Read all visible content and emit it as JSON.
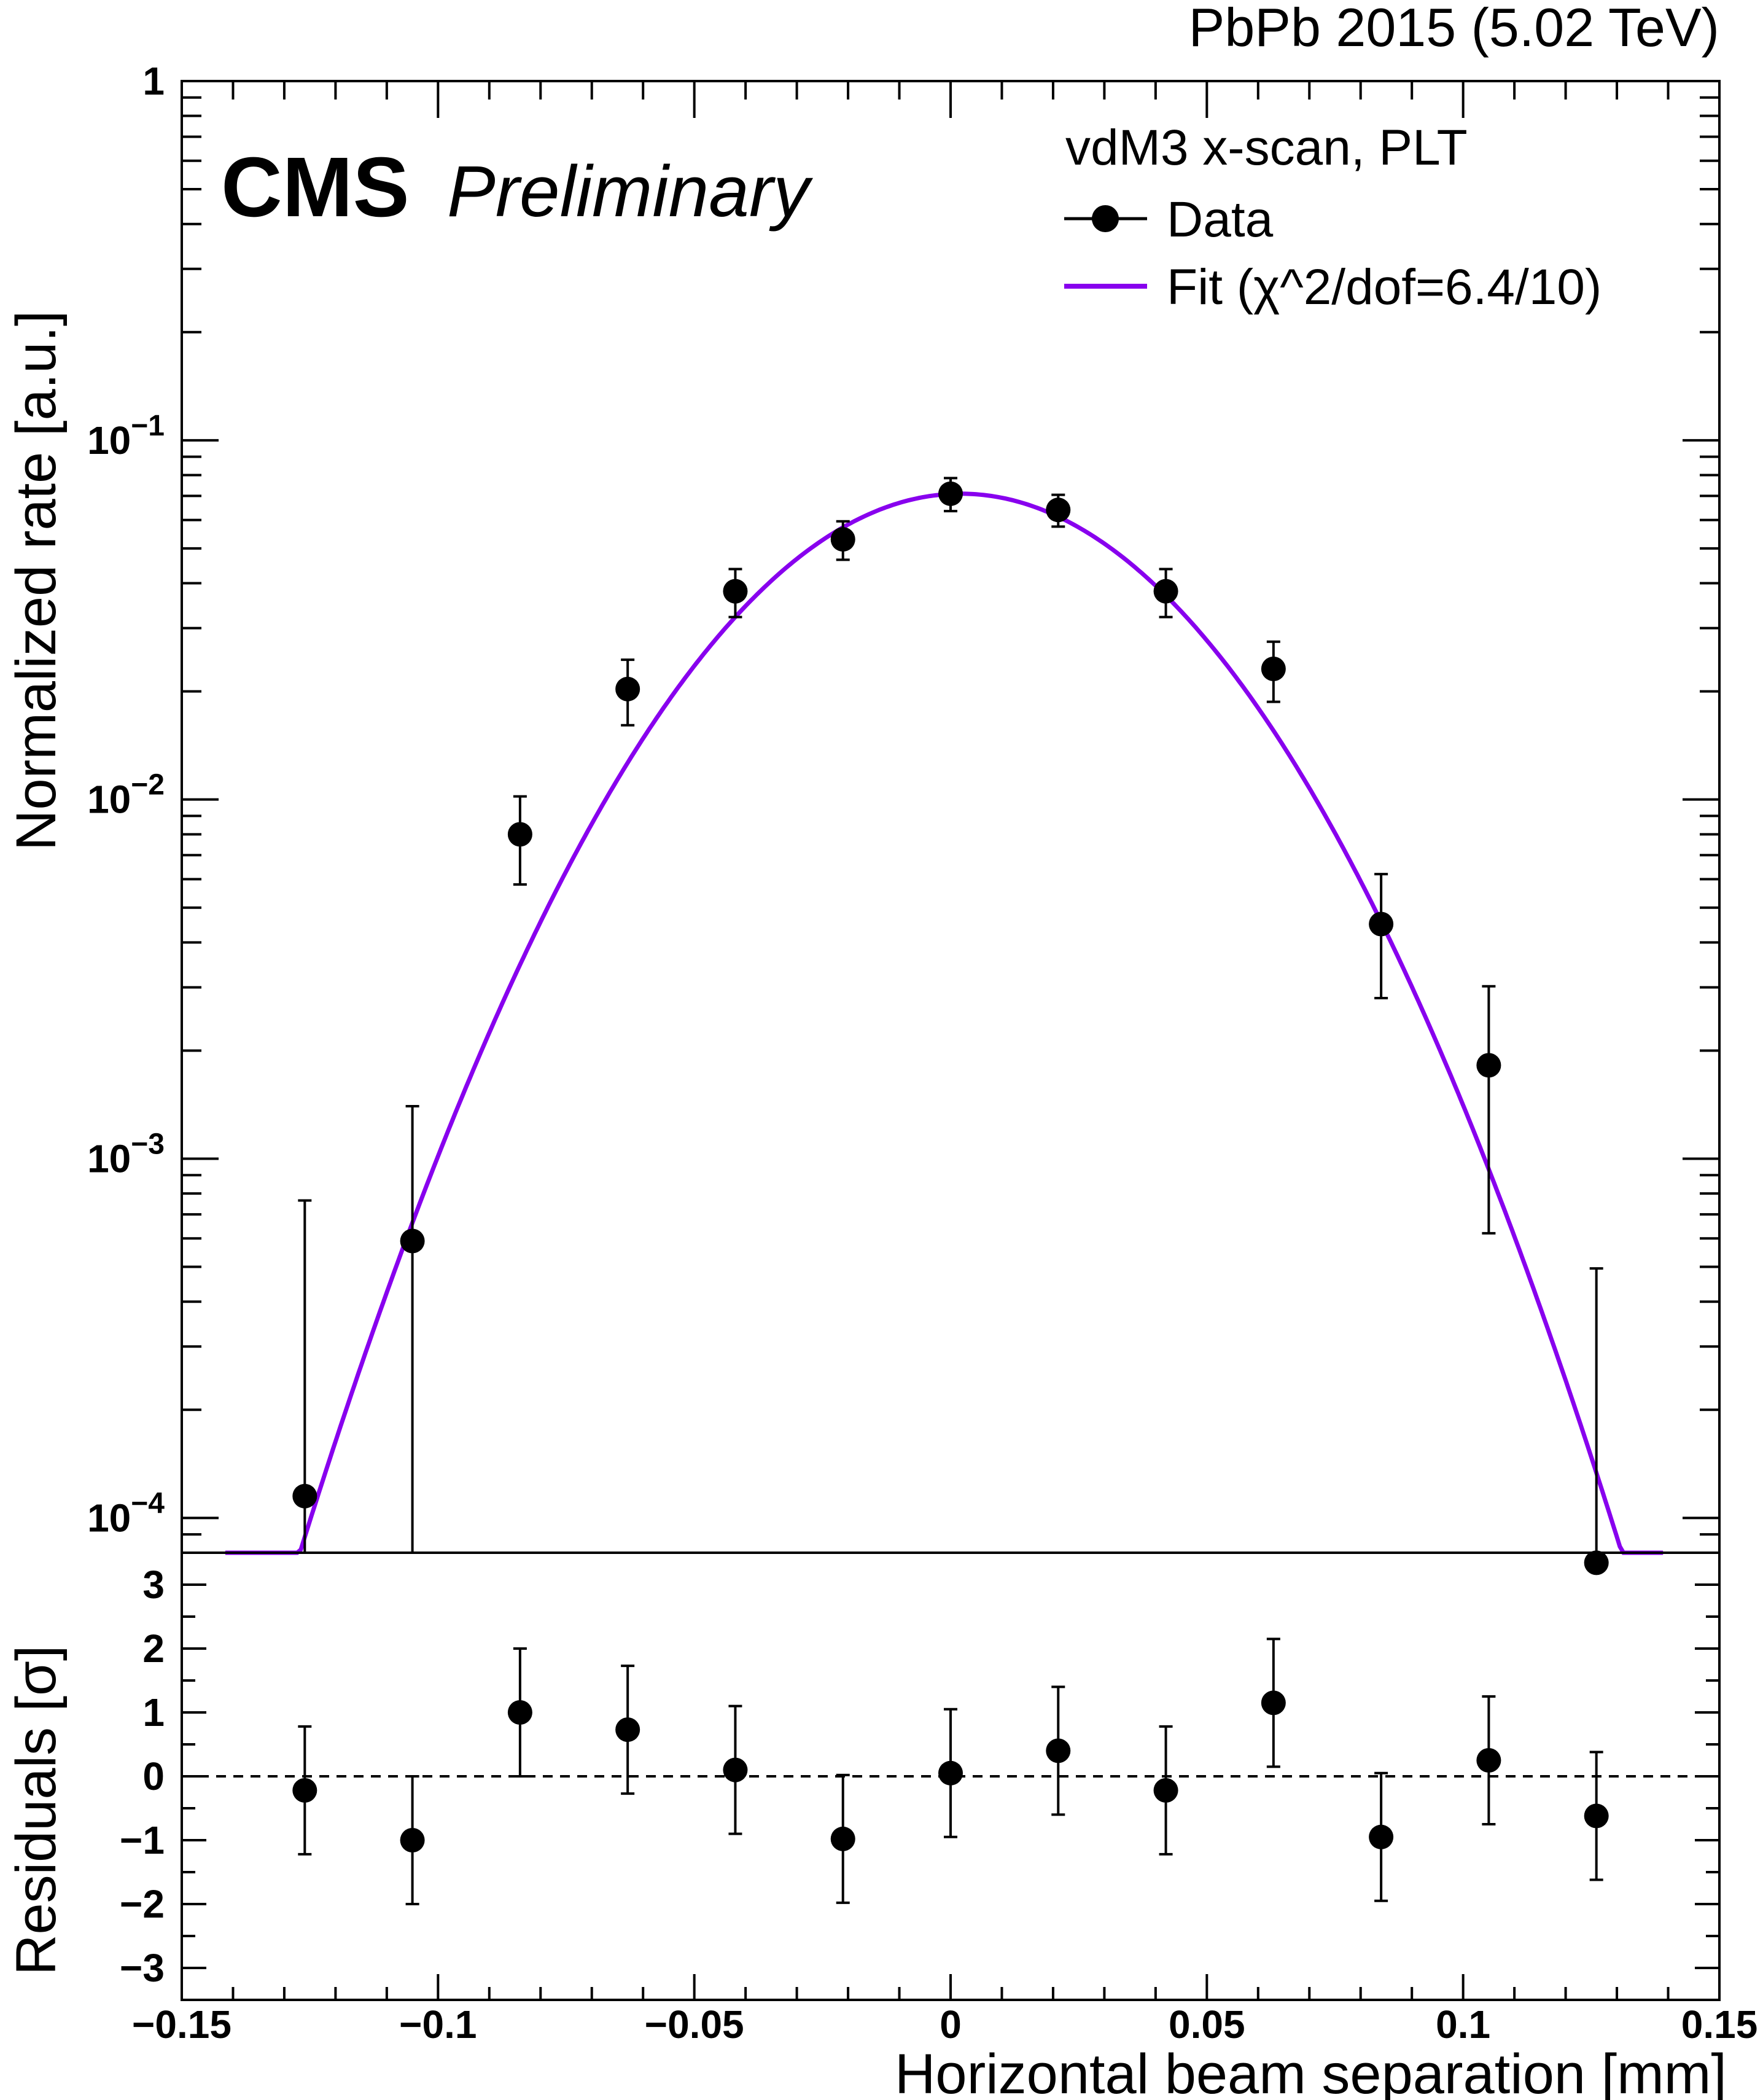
{
  "header": {
    "energy_label": "PbPb 2015 (5.02 TeV)",
    "cms_label": "CMS",
    "preliminary_label": "Preliminary"
  },
  "legend": {
    "title": "vdM3 x-scan,  PLT",
    "data_label": "Data",
    "fit_label": "Fit (χ^2/dof=6.4/10)",
    "position": "top-right"
  },
  "colors": {
    "fit": "#8800ee",
    "data": "#000000",
    "frame": "#000000"
  },
  "chart_data": [
    {
      "type": "scatter",
      "panel": "top",
      "scale": "log",
      "ylabel": "Normalized rate [a.u.]",
      "xlabel": "",
      "xlim": [
        -0.15,
        0.15
      ],
      "ylim": [
        8e-05,
        1
      ],
      "y_tick_labels": [
        {
          "value": 1,
          "base": "1",
          "exp": ""
        },
        {
          "value": 0.1,
          "base": "10",
          "exp": "−1"
        },
        {
          "value": 0.01,
          "base": "10",
          "exp": "−2"
        },
        {
          "value": 0.001,
          "base": "10",
          "exp": "−3"
        },
        {
          "value": 0.0001,
          "base": "10",
          "exp": "−4"
        }
      ],
      "series": [
        {
          "name": "Data",
          "x": [
            -0.126,
            -0.105,
            -0.084,
            -0.063,
            -0.042,
            -0.021,
            0.0,
            0.021,
            0.042,
            0.063,
            0.084,
            0.105,
            0.126
          ],
          "y": [
            0.000115,
            0.00059,
            0.008,
            0.0203,
            0.038,
            0.053,
            0.071,
            0.064,
            0.038,
            0.0231,
            0.0045,
            0.00182,
            7.5e-05
          ],
          "err_low": [
            0.000115,
            0.00059,
            0.0022,
            0.0042,
            0.0058,
            0.0065,
            0.0075,
            0.0065,
            0.0058,
            0.0044,
            0.0017,
            0.0012,
            7.5e-05
          ],
          "err_high": [
            0.00065,
            0.00081,
            0.0022,
            0.0042,
            0.0058,
            0.0065,
            0.0075,
            0.0065,
            0.0058,
            0.0044,
            0.0017,
            0.0012,
            0.00042
          ]
        },
        {
          "name": "Fit (χ^2/dof=6.4/10)",
          "model": "gaussian",
          "amplitude": 0.071,
          "mean": 0.002,
          "sigma": 0.035,
          "x_range": [
            -0.1415,
            0.139
          ]
        }
      ]
    },
    {
      "type": "scatter",
      "panel": "bottom",
      "ylabel": "Residuals [σ]",
      "xlabel": "Horizontal beam separation [mm]",
      "xlim": [
        -0.15,
        0.15
      ],
      "ylim": [
        -3.5,
        3.5
      ],
      "x_ticks": [
        -0.15,
        -0.1,
        -0.05,
        0,
        0.05,
        0.1,
        0.15
      ],
      "x_tick_labels": [
        "−0.15",
        "−0.1",
        "−0.05",
        "0",
        "0.05",
        "0.1",
        "0.15"
      ],
      "y_ticks": [
        -3,
        -2,
        -1,
        0,
        1,
        2,
        3
      ],
      "y_tick_labels": [
        "−3",
        "−2",
        "−1",
        "0",
        "1",
        "2",
        "3"
      ],
      "reference_line": 0,
      "series": [
        {
          "name": "Residuals",
          "x": [
            -0.126,
            -0.105,
            -0.084,
            -0.063,
            -0.042,
            -0.021,
            0.0,
            0.021,
            0.042,
            0.063,
            0.084,
            0.105,
            0.126
          ],
          "y": [
            -0.22,
            -1.0,
            1.0,
            0.73,
            0.1,
            -0.98,
            0.05,
            0.4,
            -0.22,
            1.15,
            -0.95,
            0.25,
            -0.62
          ],
          "err": [
            1.0,
            1.0,
            1.0,
            1.0,
            1.0,
            1.0,
            1.0,
            1.0,
            1.0,
            1.0,
            1.0,
            1.0,
            1.0
          ]
        }
      ]
    }
  ]
}
